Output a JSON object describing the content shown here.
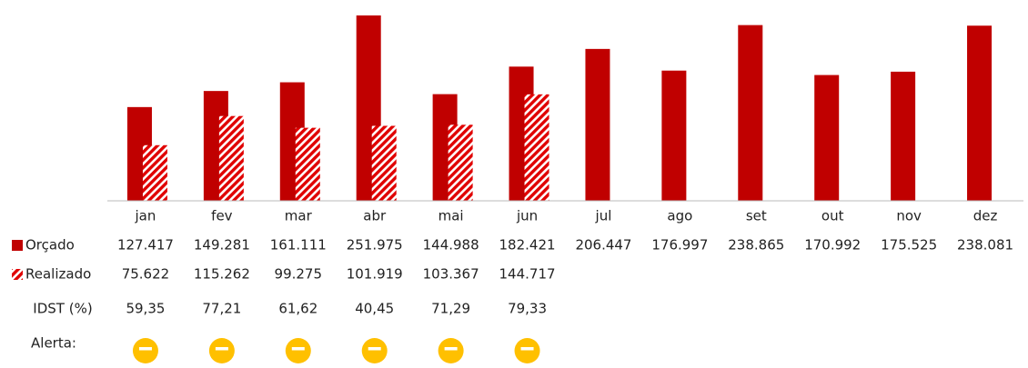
{
  "chart_data": {
    "type": "bar",
    "categories": [
      "jan",
      "fev",
      "mar",
      "abr",
      "mai",
      "jun",
      "jul",
      "ago",
      "set",
      "out",
      "nov",
      "dez"
    ],
    "series": [
      {
        "name": "Orçado",
        "color": "#C00000",
        "values": [
          127417,
          149281,
          161111,
          251975,
          144988,
          182421,
          206447,
          176997,
          238865,
          170992,
          175525,
          238081
        ],
        "value_labels": [
          "127.417",
          "149.281",
          "161.111",
          "251.975",
          "144.988",
          "182.421",
          "206.447",
          "176.997",
          "238.865",
          "170.992",
          "175.525",
          "238.081"
        ]
      },
      {
        "name": "Realizado",
        "color": "#E00000",
        "values": [
          75622,
          115262,
          99275,
          101919,
          103367,
          144717,
          null,
          null,
          null,
          null,
          null,
          null
        ],
        "value_labels": [
          "75.622",
          "115.262",
          "99.275",
          "101.919",
          "103.367",
          "144.717",
          null,
          null,
          null,
          null,
          null,
          null
        ]
      }
    ],
    "idst": {
      "name": "IDST (%)",
      "values": [
        59.35,
        77.21,
        61.62,
        40.45,
        71.29,
        79.33,
        null,
        null,
        null,
        null,
        null,
        null
      ],
      "value_labels": [
        "59,35",
        "77,21",
        "61,62",
        "40,45",
        "71,29",
        "79,33",
        null,
        null,
        null,
        null,
        null,
        null
      ]
    },
    "alert_label": "Alerta:"
  }
}
